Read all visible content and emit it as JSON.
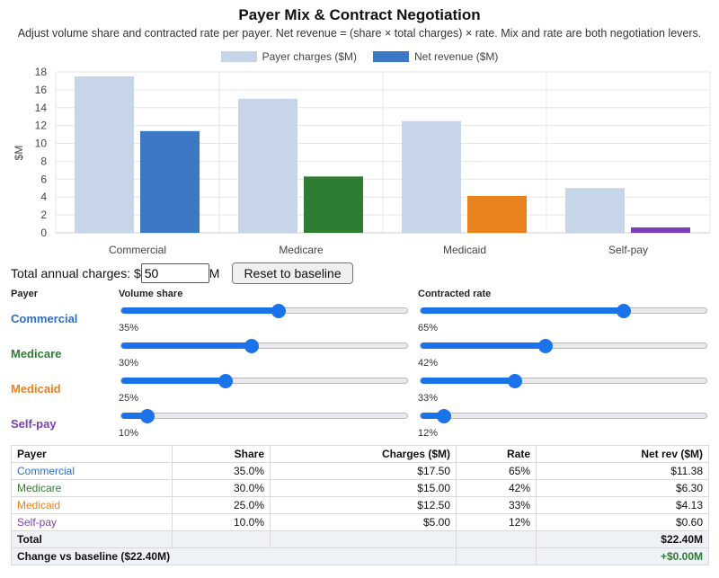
{
  "title": "Payer Mix & Contract Negotiation",
  "subtitle": "Adjust volume share and contracted rate per payer. Net revenue = (share × total charges) × rate. Mix and rate are both negotiation levers.",
  "legend": [
    {
      "label": "Payer charges ($M)",
      "color": "#c6d6e8"
    },
    {
      "label": "Net revenue ($M)",
      "color": "#3d78c7"
    }
  ],
  "chart_data": {
    "type": "bar",
    "categories": [
      "Commercial",
      "Medicare",
      "Medicaid",
      "Self-pay"
    ],
    "series": [
      {
        "name": "Payer charges ($M)",
        "values": [
          17.5,
          15.0,
          12.5,
          5.0
        ],
        "colors": [
          "#c6d6e8",
          "#c6d6e8",
          "#c6d6e8",
          "#c6d6e8"
        ]
      },
      {
        "name": "Net revenue ($M)",
        "values": [
          11.38,
          6.3,
          4.13,
          0.6
        ],
        "colors": [
          "#3d78c7",
          "#2e7d32",
          "#e8821e",
          "#7b3fb8"
        ]
      }
    ],
    "ylabel": "$M",
    "yticks": [
      0,
      2,
      4,
      6,
      8,
      10,
      12,
      14,
      16,
      18
    ],
    "ylim": [
      0,
      18
    ],
    "grid": true,
    "legend_position": "top-center"
  },
  "controls": {
    "total_label": "Total annual charges: $",
    "total_value": "50",
    "total_unit": "M",
    "reset_label": "Reset to baseline"
  },
  "headers": {
    "payer": "Payer",
    "volume": "Volume share",
    "rate": "Contracted rate"
  },
  "payers": [
    {
      "name": "Commercial",
      "color": "#2f6fbf",
      "share": 35,
      "share_label": "35%",
      "rate": 65,
      "rate_label": "65%"
    },
    {
      "name": "Medicare",
      "color": "#2e7d32",
      "share": 30,
      "share_label": "30%",
      "rate": 42,
      "rate_label": "42%"
    },
    {
      "name": "Medicaid",
      "color": "#e8821e",
      "share": 25,
      "share_label": "25%",
      "rate": 33,
      "rate_label": "33%"
    },
    {
      "name": "Self-pay",
      "color": "#7b3fb8",
      "share": 10,
      "share_label": "10%",
      "rate": 12,
      "rate_label": "12%"
    }
  ],
  "table": {
    "columns": [
      "Payer",
      "Share",
      "Charges ($M)",
      "Rate",
      "Net rev ($M)"
    ],
    "rows": [
      {
        "payer": "Commercial",
        "share": "35.0%",
        "charges": "$17.50",
        "rate": "65%",
        "net": "$11.38"
      },
      {
        "payer": "Medicare",
        "share": "30.0%",
        "charges": "$15.00",
        "rate": "42%",
        "net": "$6.30"
      },
      {
        "payer": "Medicaid",
        "share": "25.0%",
        "charges": "$12.50",
        "rate": "33%",
        "net": "$4.13"
      },
      {
        "payer": "Self-pay",
        "share": "10.0%",
        "charges": "$5.00",
        "rate": "12%",
        "net": "$0.60"
      }
    ],
    "total_label": "Total",
    "total_value": "$22.40M",
    "change_label": "Change vs baseline ($22.40M)",
    "change_value": "+$0.00M",
    "change_color": "#2e7d32"
  }
}
